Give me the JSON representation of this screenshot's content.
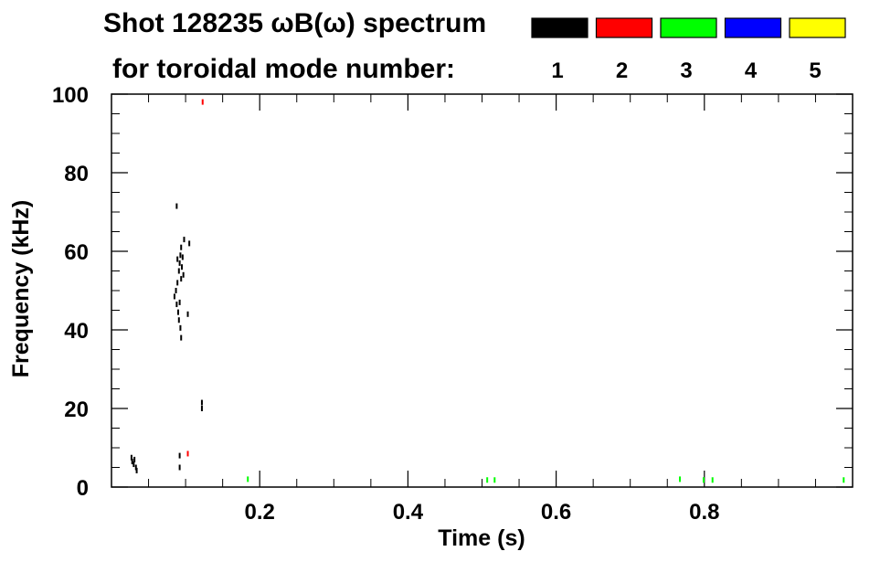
{
  "chart_data": {
    "type": "scatter",
    "title": "Shot 128235 ωB(ω) spectrum",
    "subtitle": "for toroidal mode number:",
    "xlabel": "Time (s)",
    "ylabel": "Frequency (kHz)",
    "xlim": [
      0.0,
      1.0
    ],
    "ylim": [
      0,
      100
    ],
    "x_ticks": [
      {
        "value": 0.2,
        "label": "0.2"
      },
      {
        "value": 0.4,
        "label": "0.4"
      },
      {
        "value": 0.6,
        "label": "0.6"
      },
      {
        "value": 0.8,
        "label": "0.8"
      }
    ],
    "y_ticks": [
      {
        "value": 0,
        "label": "0"
      },
      {
        "value": 20,
        "label": "20"
      },
      {
        "value": 40,
        "label": "40"
      },
      {
        "value": 60,
        "label": "60"
      },
      {
        "value": 80,
        "label": "80"
      },
      {
        "value": 100,
        "label": "100"
      }
    ],
    "grid": false,
    "legend_placement": "top-right",
    "legend": [
      {
        "label": "1",
        "color": "#000000"
      },
      {
        "label": "2",
        "color": "#ff0000"
      },
      {
        "label": "3",
        "color": "#00ff00"
      },
      {
        "label": "4",
        "color": "#0000ff"
      },
      {
        "label": "5",
        "color": "#ffff00"
      }
    ],
    "series": [
      {
        "mode": "1",
        "color": "#000000",
        "points": [
          [
            0.027,
            7.5
          ],
          [
            0.028,
            6.5
          ],
          [
            0.03,
            5.8
          ],
          [
            0.031,
            7.0
          ],
          [
            0.033,
            5.0
          ],
          [
            0.034,
            4.2
          ],
          [
            0.085,
            48.5
          ],
          [
            0.087,
            50.0
          ],
          [
            0.088,
            46.5
          ],
          [
            0.089,
            52.0
          ],
          [
            0.09,
            44.5
          ],
          [
            0.091,
            55.0
          ],
          [
            0.091,
            42.5
          ],
          [
            0.092,
            57.0
          ],
          [
            0.092,
            47.0
          ],
          [
            0.093,
            40.5
          ],
          [
            0.093,
            59.0
          ],
          [
            0.094,
            61.0
          ],
          [
            0.094,
            53.0
          ],
          [
            0.095,
            56.0
          ],
          [
            0.096,
            58.5
          ],
          [
            0.097,
            54.0
          ],
          [
            0.098,
            63.0
          ],
          [
            0.088,
            71.5
          ],
          [
            0.094,
            38.0
          ],
          [
            0.105,
            62.0
          ],
          [
            0.103,
            44.0
          ],
          [
            0.089,
            58.0
          ],
          [
            0.092,
            5.0
          ],
          [
            0.092,
            8.0
          ],
          [
            0.122,
            20.0
          ],
          [
            0.122,
            21.5
          ]
        ]
      },
      {
        "mode": "2",
        "color": "#ff0000",
        "points": [
          [
            0.103,
            8.5
          ],
          [
            0.123,
            98.0
          ]
        ]
      },
      {
        "mode": "3",
        "color": "#00ff00",
        "points": [
          [
            0.184,
            2.0
          ],
          [
            0.507,
            1.8
          ],
          [
            0.517,
            1.8
          ],
          [
            0.767,
            2.0
          ],
          [
            0.799,
            1.8
          ],
          [
            0.811,
            1.8
          ],
          [
            0.988,
            1.8
          ]
        ]
      }
    ]
  }
}
